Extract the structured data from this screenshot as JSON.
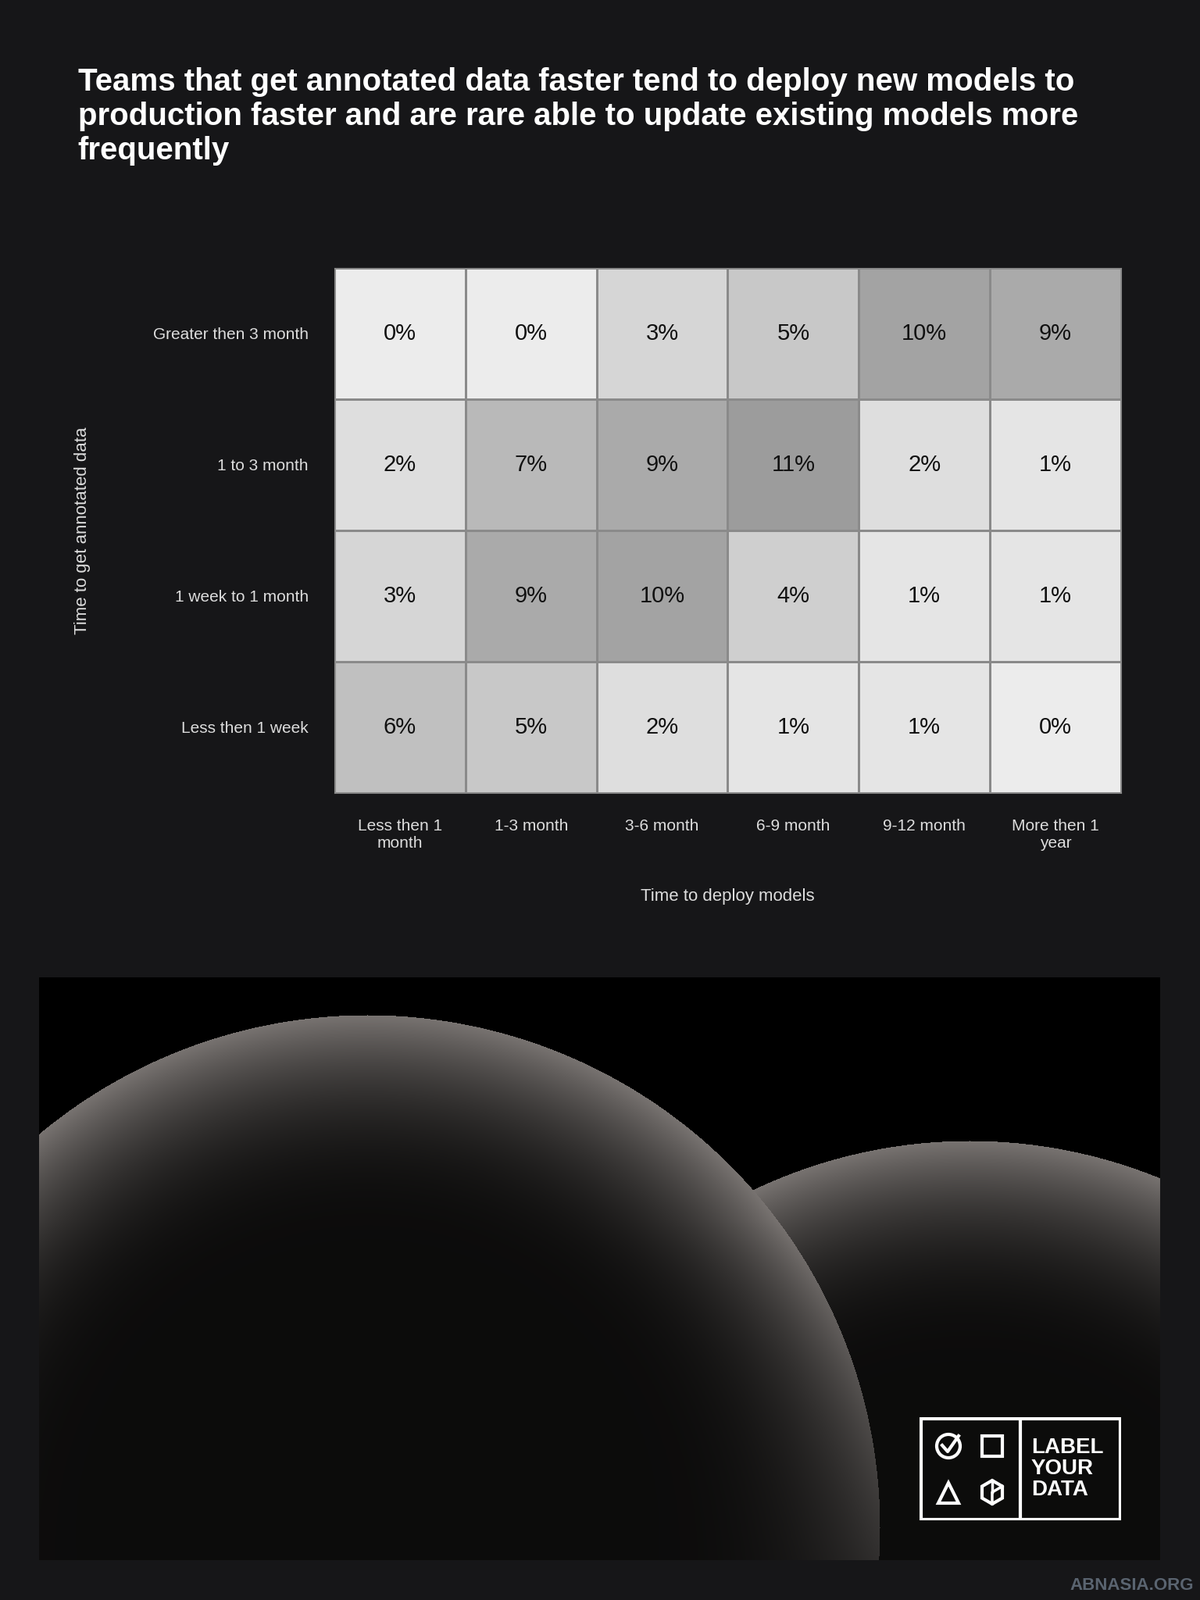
{
  "chart_data": {
    "type": "heatmap",
    "title": "Teams that get annotated data faster tend to deploy new models to production faster and are rare able to update existing models more frequently",
    "x_label": "Time to deploy models",
    "y_label": "Time to get annotated data",
    "categories": [
      "Less then 1 month",
      "1-3 month",
      "3-6 month",
      "6-9 month",
      "9-12 month",
      "More then 1 year"
    ],
    "rows": [
      "Greater then 3 month",
      "1 to 3 month",
      "1 week to 1 month",
      "Less then 1 week"
    ],
    "cells": [
      [
        0,
        0,
        3,
        5,
        10,
        9
      ],
      [
        2,
        7,
        9,
        11,
        2,
        1
      ],
      [
        3,
        9,
        10,
        4,
        1,
        1
      ],
      [
        6,
        5,
        2,
        1,
        1,
        0
      ]
    ],
    "value_labels": [
      [
        "0%",
        "0%",
        "3%",
        "5%",
        "10%",
        "9%"
      ],
      [
        "2%",
        "7%",
        "9%",
        "11%",
        "2%",
        "1%"
      ],
      [
        "3%",
        "9%",
        "10%",
        "4%",
        "1%",
        "1%"
      ],
      [
        "6%",
        "5%",
        "2%",
        "1%",
        "1%",
        "0%"
      ]
    ],
    "data_labels": true,
    "annotations": [
      "LABEL YOUR DATA",
      "ABNASIA.ORG"
    ]
  }
}
